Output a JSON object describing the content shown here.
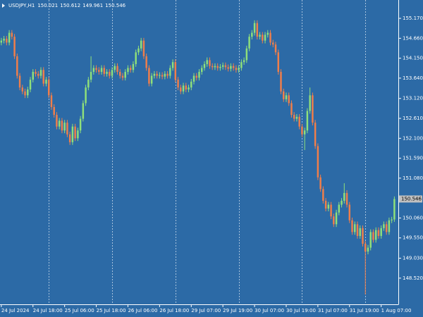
{
  "chart_data": {
    "type": "candlestick",
    "symbol": "USDJPY,H1",
    "open": 150.021,
    "high": 150.612,
    "low": 149.961,
    "close": 150.546,
    "last_price": 150.546,
    "up_color": "#8fe07a",
    "down_color": "#f07e4a",
    "background": "#2c6aa6",
    "xlim": [
      -0.5,
      150.5
    ],
    "xticks": [
      {
        "value": 0,
        "label": "24 Jul 2024"
      },
      {
        "value": 12,
        "label": "24 Jul 18:00"
      },
      {
        "value": 24,
        "label": "25 Jul 06:00"
      },
      {
        "value": 36,
        "label": "25 Jul 18:00"
      },
      {
        "value": 48,
        "label": "26 Jul 06:00"
      },
      {
        "value": 60,
        "label": "26 Jul 18:00"
      },
      {
        "value": 72,
        "label": "29 Jul 07:00"
      },
      {
        "value": 84,
        "label": "29 Jul 19:00"
      },
      {
        "value": 96,
        "label": "30 Jul 07:00"
      },
      {
        "value": 108,
        "label": "30 Jul 19:00"
      },
      {
        "value": 120,
        "label": "31 Jul 07:00"
      },
      {
        "value": 132,
        "label": "31 Jul 19:00"
      },
      {
        "value": 144,
        "label": "1 Aug 07:00"
      }
    ],
    "ylim": [
      147.85,
      155.64
    ],
    "yticks": [
      {
        "value": 155.17,
        "label": "155.170"
      },
      {
        "value": 154.66,
        "label": "154.660"
      },
      {
        "value": 154.15,
        "label": "154.150"
      },
      {
        "value": 153.64,
        "label": "153.640"
      },
      {
        "value": 153.12,
        "label": "153.120"
      },
      {
        "value": 152.61,
        "label": "152.610"
      },
      {
        "value": 152.1,
        "label": "152.100"
      },
      {
        "value": 151.59,
        "label": "151.590"
      },
      {
        "value": 151.08,
        "label": "151.080"
      },
      {
        "value": 150.06,
        "label": "150.060"
      },
      {
        "value": 149.55,
        "label": "149.550"
      },
      {
        "value": 149.03,
        "label": "149.030"
      },
      {
        "value": 148.52,
        "label": "148.520"
      }
    ],
    "candles": [
      [
        154.55,
        154.67,
        154.48,
        154.6
      ],
      [
        154.6,
        154.72,
        154.53,
        154.65
      ],
      [
        154.65,
        154.72,
        154.48,
        154.55
      ],
      [
        154.55,
        154.87,
        154.48,
        154.8
      ],
      [
        154.8,
        154.87,
        154.63,
        154.7
      ],
      [
        154.7,
        154.77,
        154.13,
        154.2
      ],
      [
        154.2,
        154.27,
        153.63,
        153.7
      ],
      [
        153.7,
        153.77,
        153.33,
        153.4
      ],
      [
        153.4,
        153.47,
        153.23,
        153.3
      ],
      [
        153.3,
        153.37,
        153.13,
        153.2
      ],
      [
        153.2,
        153.42,
        153.13,
        153.35
      ],
      [
        153.35,
        153.67,
        153.28,
        153.6
      ],
      [
        153.6,
        153.87,
        153.53,
        153.8
      ],
      [
        153.8,
        153.87,
        153.68,
        153.75
      ],
      [
        153.75,
        153.82,
        153.63,
        153.7
      ],
      [
        153.7,
        153.92,
        153.63,
        153.85
      ],
      [
        153.85,
        153.92,
        153.43,
        153.5
      ],
      [
        153.5,
        153.67,
        153.43,
        153.6
      ],
      [
        153.6,
        153.67,
        153.13,
        153.2
      ],
      [
        153.2,
        153.27,
        152.83,
        152.9
      ],
      [
        152.9,
        152.97,
        152.63,
        152.7
      ],
      [
        152.7,
        152.77,
        152.33,
        152.4
      ],
      [
        152.4,
        152.62,
        152.33,
        152.55
      ],
      [
        152.55,
        152.62,
        152.23,
        152.3
      ],
      [
        152.3,
        152.57,
        152.23,
        152.5
      ],
      [
        152.5,
        152.57,
        152.13,
        152.2
      ],
      [
        152.2,
        152.27,
        151.93,
        152.0
      ],
      [
        152.0,
        152.47,
        151.93,
        152.4
      ],
      [
        152.4,
        152.47,
        152.03,
        152.1
      ],
      [
        152.1,
        152.37,
        152.03,
        152.3
      ],
      [
        152.3,
        152.67,
        152.23,
        152.6
      ],
      [
        152.6,
        153.07,
        152.53,
        153.0
      ],
      [
        153.0,
        153.47,
        152.93,
        153.4
      ],
      [
        153.4,
        153.67,
        153.33,
        153.6
      ],
      [
        153.6,
        154.2,
        153.53,
        153.8
      ],
      [
        153.8,
        153.97,
        153.73,
        153.9
      ],
      [
        153.9,
        153.97,
        153.78,
        153.85
      ],
      [
        153.85,
        153.92,
        153.73,
        153.8
      ],
      [
        153.8,
        153.97,
        153.73,
        153.9
      ],
      [
        153.9,
        153.97,
        153.68,
        153.75
      ],
      [
        153.75,
        153.87,
        153.68,
        153.8
      ],
      [
        153.8,
        153.87,
        153.63,
        153.7
      ],
      [
        153.7,
        153.92,
        153.63,
        153.85
      ],
      [
        153.85,
        154.02,
        153.78,
        153.95
      ],
      [
        153.95,
        154.02,
        153.73,
        153.8
      ],
      [
        153.8,
        153.87,
        153.63,
        153.7
      ],
      [
        153.7,
        153.77,
        153.58,
        153.65
      ],
      [
        153.65,
        153.87,
        153.58,
        153.8
      ],
      [
        153.8,
        153.97,
        153.73,
        153.9
      ],
      [
        153.9,
        153.97,
        153.78,
        153.85
      ],
      [
        153.85,
        154.07,
        153.78,
        154.0
      ],
      [
        154.0,
        154.37,
        153.93,
        154.3
      ],
      [
        154.3,
        154.47,
        154.23,
        154.4
      ],
      [
        154.4,
        154.67,
        154.33,
        154.6
      ],
      [
        154.6,
        154.67,
        154.13,
        154.2
      ],
      [
        154.2,
        154.27,
        153.83,
        153.9
      ],
      [
        153.9,
        153.97,
        153.43,
        153.5
      ],
      [
        153.5,
        153.77,
        153.43,
        153.7
      ],
      [
        153.7,
        153.82,
        153.63,
        153.75
      ],
      [
        153.75,
        153.82,
        153.63,
        153.7
      ],
      [
        153.7,
        153.79,
        153.63,
        153.72
      ],
      [
        153.72,
        153.79,
        153.61,
        153.68
      ],
      [
        153.68,
        153.82,
        153.61,
        153.75
      ],
      [
        153.75,
        153.82,
        153.63,
        153.7
      ],
      [
        153.7,
        153.97,
        153.63,
        153.9
      ],
      [
        153.9,
        154.12,
        153.83,
        154.05
      ],
      [
        154.05,
        154.12,
        153.53,
        153.6
      ],
      [
        153.6,
        153.67,
        153.33,
        153.4
      ],
      [
        153.4,
        153.47,
        153.23,
        153.3
      ],
      [
        153.3,
        153.52,
        153.23,
        153.45
      ],
      [
        153.45,
        153.52,
        153.28,
        153.35
      ],
      [
        153.35,
        153.47,
        153.28,
        153.4
      ],
      [
        153.4,
        153.62,
        153.33,
        153.55
      ],
      [
        153.55,
        153.77,
        153.48,
        153.7
      ],
      [
        153.7,
        153.77,
        153.58,
        153.65
      ],
      [
        153.65,
        153.87,
        153.58,
        153.8
      ],
      [
        153.8,
        153.97,
        153.73,
        153.9
      ],
      [
        153.9,
        154.07,
        153.83,
        154.0
      ],
      [
        154.0,
        154.17,
        153.93,
        154.1
      ],
      [
        154.1,
        154.17,
        153.88,
        153.95
      ],
      [
        153.95,
        154.02,
        153.85,
        153.92
      ],
      [
        153.92,
        154.02,
        153.85,
        153.95
      ],
      [
        153.95,
        154.02,
        153.83,
        153.9
      ],
      [
        153.9,
        154.0,
        153.83,
        153.93
      ],
      [
        153.93,
        154.04,
        153.86,
        153.97
      ],
      [
        153.97,
        154.04,
        153.85,
        153.92
      ],
      [
        153.92,
        153.99,
        153.81,
        153.88
      ],
      [
        153.88,
        154.02,
        153.81,
        153.95
      ],
      [
        153.95,
        154.02,
        153.83,
        153.9
      ],
      [
        153.9,
        153.97,
        153.78,
        153.85
      ],
      [
        153.85,
        153.97,
        153.78,
        153.9
      ],
      [
        153.9,
        154.12,
        153.83,
        154.05
      ],
      [
        154.05,
        154.17,
        153.98,
        154.1
      ],
      [
        154.1,
        154.47,
        154.03,
        154.4
      ],
      [
        154.4,
        154.77,
        154.33,
        154.7
      ],
      [
        154.7,
        154.87,
        154.63,
        154.8
      ],
      [
        154.8,
        155.12,
        154.73,
        155.05
      ],
      [
        155.05,
        155.12,
        154.63,
        154.7
      ],
      [
        154.7,
        154.82,
        154.63,
        154.75
      ],
      [
        154.75,
        154.82,
        154.53,
        154.6
      ],
      [
        154.6,
        154.82,
        154.53,
        154.75
      ],
      [
        154.75,
        154.87,
        154.68,
        154.8
      ],
      [
        154.8,
        154.87,
        154.48,
        154.55
      ],
      [
        154.55,
        154.62,
        154.43,
        154.5
      ],
      [
        154.5,
        154.57,
        154.23,
        154.3
      ],
      [
        154.3,
        154.37,
        153.73,
        153.8
      ],
      [
        153.8,
        153.87,
        153.23,
        153.3
      ],
      [
        153.3,
        153.37,
        153.03,
        153.1
      ],
      [
        153.1,
        153.27,
        153.03,
        153.2
      ],
      [
        153.2,
        153.27,
        152.93,
        153.0
      ],
      [
        153.0,
        153.07,
        152.63,
        152.7
      ],
      [
        152.7,
        152.77,
        152.53,
        152.6
      ],
      [
        152.6,
        152.72,
        152.53,
        152.65
      ],
      [
        152.65,
        152.72,
        152.33,
        152.4
      ],
      [
        152.4,
        152.47,
        152.13,
        152.2
      ],
      [
        152.2,
        152.37,
        151.8,
        152.3
      ],
      [
        152.3,
        152.87,
        152.23,
        152.8
      ],
      [
        152.8,
        153.4,
        152.73,
        153.2
      ],
      [
        153.2,
        153.27,
        152.43,
        152.5
      ],
      [
        152.5,
        152.57,
        151.83,
        151.9
      ],
      [
        151.9,
        151.97,
        151.03,
        151.1
      ],
      [
        151.1,
        151.17,
        150.73,
        150.8
      ],
      [
        150.8,
        150.87,
        150.43,
        150.5
      ],
      [
        150.5,
        150.57,
        150.23,
        150.3
      ],
      [
        150.3,
        150.47,
        150.23,
        150.4
      ],
      [
        150.4,
        150.47,
        150.03,
        150.1
      ],
      [
        150.1,
        150.17,
        149.83,
        149.9
      ],
      [
        149.9,
        150.27,
        149.83,
        150.2
      ],
      [
        150.2,
        150.47,
        150.13,
        150.4
      ],
      [
        150.4,
        150.57,
        150.33,
        150.5
      ],
      [
        150.5,
        150.95,
        150.43,
        150.7
      ],
      [
        150.7,
        150.77,
        150.33,
        150.4
      ],
      [
        150.4,
        150.47,
        149.93,
        150.0
      ],
      [
        150.0,
        150.07,
        149.63,
        149.7
      ],
      [
        149.7,
        149.97,
        149.63,
        149.9
      ],
      [
        149.9,
        149.97,
        149.53,
        149.6
      ],
      [
        149.6,
        149.87,
        149.53,
        149.8
      ],
      [
        149.8,
        149.87,
        149.33,
        149.4
      ],
      [
        149.4,
        149.47,
        148.1,
        149.2
      ],
      [
        149.2,
        149.37,
        149.13,
        149.3
      ],
      [
        149.3,
        149.77,
        149.23,
        149.7
      ],
      [
        149.7,
        149.77,
        149.43,
        149.5
      ],
      [
        149.5,
        149.82,
        149.43,
        149.75
      ],
      [
        149.75,
        149.82,
        149.53,
        149.6
      ],
      [
        149.6,
        149.87,
        149.53,
        149.8
      ],
      [
        149.8,
        149.97,
        149.73,
        149.9
      ],
      [
        149.9,
        149.97,
        149.63,
        149.7
      ],
      [
        149.7,
        150.07,
        149.63,
        150.0
      ],
      [
        150.0,
        150.09,
        149.93,
        150.021
      ],
      [
        150.021,
        150.612,
        149.961,
        150.546
      ]
    ]
  }
}
